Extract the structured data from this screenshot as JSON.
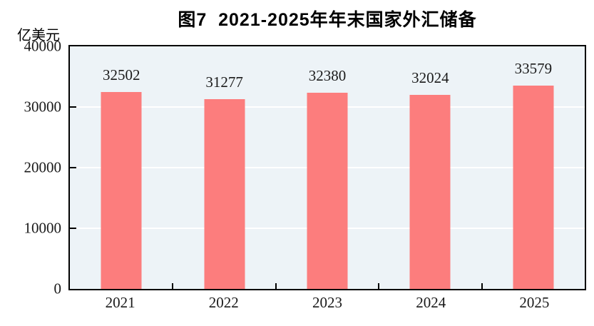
{
  "title": "图7  2021-2025年年末国家外汇储备",
  "unit_label": "亿美元",
  "chart_data": {
    "type": "bar",
    "title": "图7 2021-2025年年末国家外汇储备",
    "categories": [
      "2021",
      "2022",
      "2023",
      "2024",
      "2025"
    ],
    "values": [
      32502,
      31277,
      32380,
      32024,
      33579
    ],
    "xlabel": "",
    "ylabel": "亿美元",
    "ylim": [
      0,
      40000
    ],
    "yticks": [
      0,
      10000,
      20000,
      30000,
      40000
    ],
    "grid": true,
    "legend": "none",
    "bar_color": "#FC7D7D",
    "plot_background": "#EDF3F7",
    "gridline_color": "#FFFFFF",
    "frame_color": "#000000",
    "tick_color": "#000000"
  }
}
